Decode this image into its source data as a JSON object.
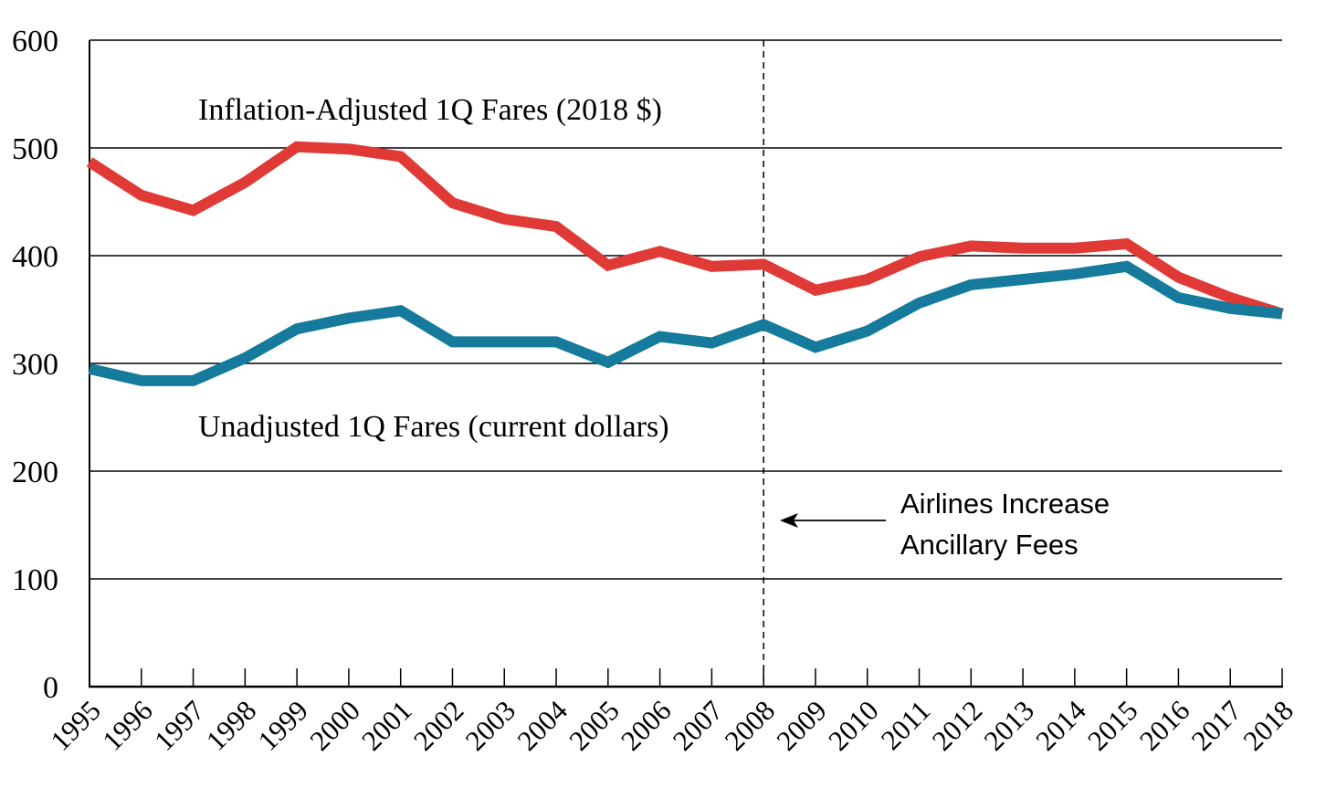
{
  "chart_data": {
    "type": "line",
    "title": "",
    "xlabel": "",
    "ylabel": "",
    "ylim": [
      0,
      600
    ],
    "y_ticks": [
      0,
      100,
      200,
      300,
      400,
      500,
      600
    ],
    "grid": "horizontal",
    "x": [
      1995,
      1996,
      1997,
      1998,
      1999,
      2000,
      2001,
      2002,
      2003,
      2004,
      2005,
      2006,
      2007,
      2008,
      2009,
      2010,
      2011,
      2012,
      2013,
      2014,
      2015,
      2016,
      2017,
      2018
    ],
    "series": [
      {
        "name": "Inflation-Adjusted 1Q Fares (2018 $)",
        "color": "#e03a36",
        "values": [
          487,
          456,
          442,
          468,
          501,
          499,
          492,
          449,
          434,
          427,
          391,
          404,
          390,
          392,
          368,
          378,
          399,
          409,
          407,
          407,
          411,
          380,
          361,
          346
        ]
      },
      {
        "name": "Unadjusted 1Q Fares (current dollars)",
        "color": "#157a9c",
        "values": [
          295,
          284,
          284,
          305,
          332,
          342,
          349,
          320,
          320,
          320,
          301,
          325,
          319,
          336,
          315,
          330,
          356,
          373,
          378,
          383,
          390,
          361,
          351,
          346
        ]
      }
    ],
    "annotations": [
      {
        "type": "vertical-dashed-line",
        "x": 2008
      },
      {
        "type": "arrow-text",
        "lines": [
          "Airlines Increase",
          "Ancillary Fees"
        ]
      }
    ]
  }
}
